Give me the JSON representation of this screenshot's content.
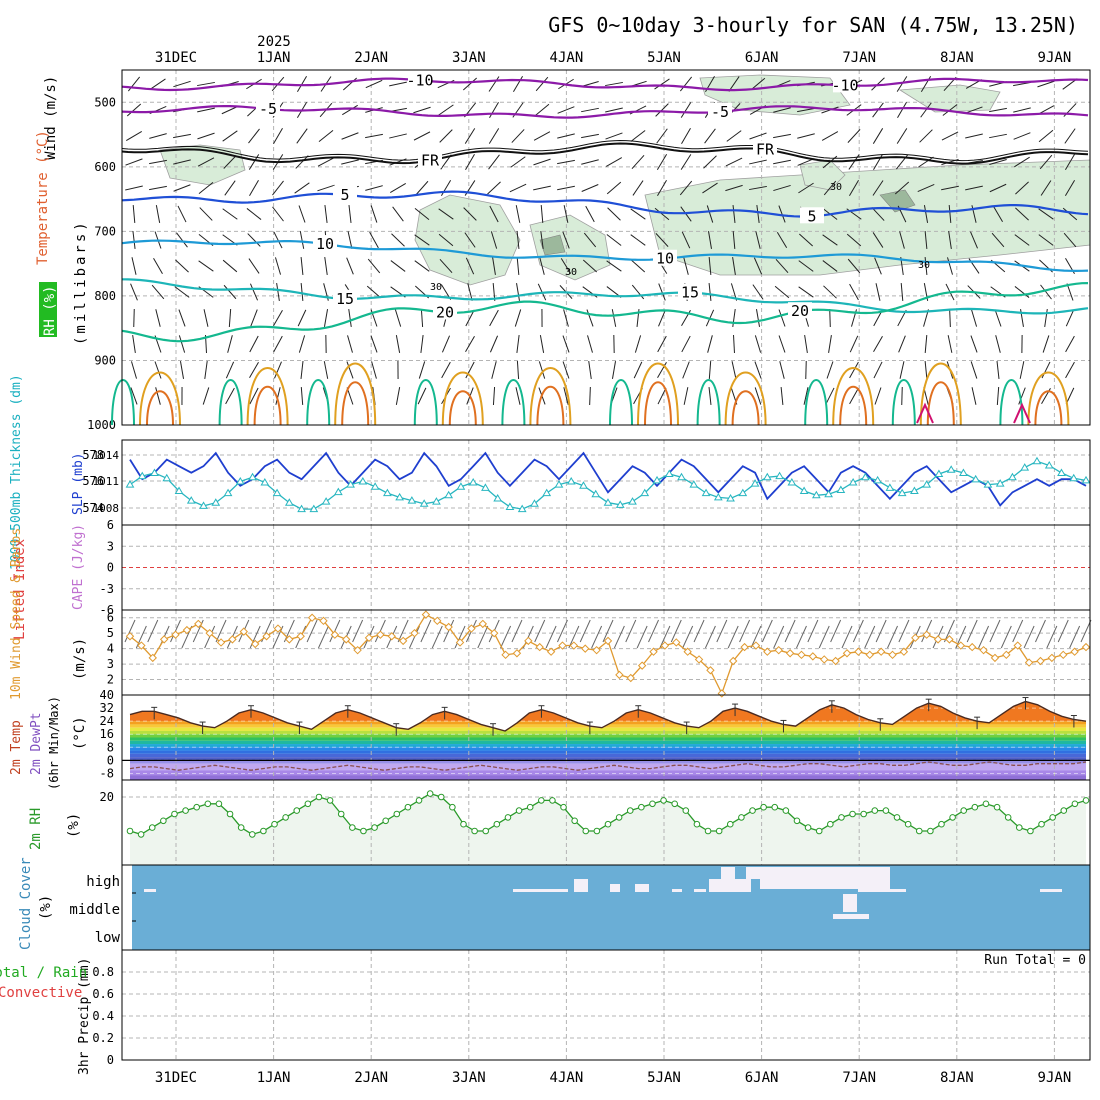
{
  "title": "GFS 0~10day 3-hourly for SAN (4.75W, 13.25N)",
  "year_label": "2025",
  "colors": {
    "grid": "#b4b4b4",
    "rh_shade": "#d8ecd8",
    "rh_shade_dark": "#9cb89c",
    "temp_minus10": "#8c1aa8",
    "temp_freeze": "#111111",
    "temp_5": "#1f4fd6",
    "temp_10": "#1e9ad6",
    "temp_15": "#1db5b8",
    "temp_20": "#14b88f",
    "temp_25": "#e0a020",
    "temp_30": "#e07020",
    "temp_35": "#d01070",
    "slp": "#1f3fcf",
    "thickness": "#28b6c0",
    "lifted_zero": "#e04040",
    "wind10": "#e09a30",
    "temp_fill_low": "#e06018",
    "dewpoint_fill": "#b080e0",
    "rh2m": "#2a9a2a",
    "rh2m_fill": "#eef5ee",
    "cloud_bg": "#6aaed6",
    "cloud_mark": "#f4f0f8"
  },
  "chart_data": [
    {
      "id": "upper-air",
      "type": "contour",
      "ylabel_parts": [
        "Wind (m/s)",
        "Temperature (°C)",
        "RH (%)",
        "(millibars)"
      ],
      "ylim": [
        1000,
        450
      ],
      "yticks": [
        "500",
        "600",
        "700",
        "800",
        "900",
        "1000"
      ],
      "ytick_values": [
        500,
        600,
        700,
        800,
        900,
        1000
      ],
      "contours": [
        {
          "label": "-10",
          "pressure": 472
        },
        {
          "label": "-5",
          "pressure": 515
        },
        {
          "label": "FR",
          "pressure": 580
        },
        {
          "label": "5",
          "pressure": 640
        },
        {
          "label": "10",
          "pressure": 718
        },
        {
          "label": "15",
          "pressure": 785
        },
        {
          "label": "20",
          "pressure": 850
        }
      ],
      "rh_label": "30"
    },
    {
      "id": "slp-thickness",
      "type": "line",
      "ylabel_left": "1000-500mb Thickness (dm)",
      "ylabel_right": "SLP (mb)",
      "left_ticks": [
        "578",
        "576",
        "574"
      ],
      "right_ticks": [
        "1014",
        "1011",
        "1008"
      ],
      "series": [
        {
          "name": "SLP (mb)",
          "ylim": [
            1004,
            1017
          ],
          "values": [
            1014,
            1011,
            1012,
            1014,
            1013,
            1012,
            1013,
            1015,
            1012,
            1010,
            1011,
            1013,
            1014,
            1012,
            1011,
            1013,
            1015,
            1012,
            1010,
            1012,
            1014,
            1013,
            1011,
            1012,
            1015,
            1013,
            1010,
            1011,
            1013,
            1015,
            1012,
            1010,
            1012,
            1014,
            1013,
            1011,
            1013,
            1015,
            1012,
            1009,
            1011,
            1013,
            1012,
            1010,
            1012,
            1014,
            1013,
            1011,
            1009,
            1011,
            1013,
            1012,
            1008,
            1010,
            1012,
            1013,
            1011,
            1009,
            1012,
            1013,
            1012,
            1010,
            1008,
            1010,
            1012,
            1013,
            1011,
            1009,
            1010,
            1011,
            1010,
            1007,
            1009,
            1010,
            1011,
            1010,
            1011,
            1011,
            1010
          ]
        },
        {
          "name": "1000-500mb Thickness (dm)",
          "ylim": [
            572,
            580
          ],
          "values": [
            575.8,
            576.6,
            576.9,
            576.4,
            575.2,
            574.3,
            573.8,
            574.1,
            575.0,
            576.1,
            576.5,
            576.0,
            575.0,
            574.1,
            573.5,
            573.5,
            574.2,
            575.1,
            575.8,
            576.1,
            575.6,
            575.0,
            574.6,
            574.3,
            574.0,
            574.2,
            574.8,
            575.6,
            576.0,
            575.5,
            574.5,
            573.7,
            573.5,
            574.0,
            575.0,
            575.8,
            576.1,
            575.7,
            574.9,
            574.1,
            573.9,
            574.2,
            575.0,
            576.2,
            576.8,
            576.5,
            575.8,
            575.0,
            574.6,
            574.5,
            575.0,
            575.9,
            576.5,
            576.6,
            576.0,
            575.2,
            574.8,
            574.9,
            575.3,
            576.0,
            576.5,
            576.2,
            575.5,
            575.0,
            575.2,
            575.8,
            576.8,
            577.2,
            576.9,
            576.3,
            575.8,
            575.9,
            576.5,
            577.4,
            578.0,
            577.6,
            576.9,
            576.4,
            576.2
          ]
        }
      ]
    },
    {
      "id": "lifted-cape",
      "type": "line",
      "ylabel": "Lifted Index",
      "ylabel2": "CAPE (J/kg)",
      "ylim": [
        -6,
        6
      ],
      "yticks": [
        "6",
        "3",
        "0",
        "-3",
        "-6"
      ],
      "ytick_values": [
        6,
        3,
        0,
        -3,
        -6
      ],
      "values": []
    },
    {
      "id": "wind-10m",
      "type": "line",
      "ylabel": "10m Wind Speed & Barbs",
      "unit": "(m/s)",
      "ylim": [
        1,
        6.5
      ],
      "yticks": [
        "6",
        "5",
        "4",
        "3",
        "2"
      ],
      "ytick_values": [
        6,
        5,
        4,
        3,
        2
      ],
      "values": [
        4.8,
        4.2,
        3.4,
        4.6,
        4.9,
        5.2,
        5.6,
        5.0,
        4.4,
        4.6,
        5.1,
        4.3,
        4.8,
        5.3,
        4.6,
        4.8,
        6.0,
        5.8,
        4.9,
        4.6,
        3.9,
        4.7,
        4.9,
        4.8,
        4.5,
        5.0,
        6.2,
        5.8,
        5.4,
        4.4,
        5.3,
        5.6,
        5.0,
        3.6,
        3.7,
        4.5,
        4.1,
        3.8,
        4.2,
        4.2,
        4.0,
        3.9,
        4.5,
        2.3,
        2.1,
        2.9,
        3.8,
        4.2,
        4.4,
        3.8,
        3.3,
        2.6,
        1.1,
        3.2,
        4.1,
        4.2,
        3.8,
        3.9,
        3.7,
        3.6,
        3.5,
        3.3,
        3.2,
        3.7,
        3.8,
        3.6,
        3.8,
        3.6,
        3.8,
        4.7,
        4.9,
        4.6,
        4.6,
        4.2,
        4.1,
        3.9,
        3.4,
        3.6,
        4.2,
        3.1,
        3.2,
        3.4,
        3.6,
        3.8,
        4.1
      ]
    },
    {
      "id": "temp-dewpt",
      "type": "area",
      "ylabel_parts": [
        "2m Temp",
        "2m DewPt",
        "(6hr Min/Max)"
      ],
      "unit": "(°C)",
      "ylim": [
        -12,
        40
      ],
      "yticks": [
        "40",
        "32",
        "24",
        "16",
        "8",
        "0",
        "-8"
      ],
      "ytick_values": [
        40,
        32,
        24,
        16,
        8,
        0,
        -8
      ],
      "temperature": [
        28,
        30,
        30,
        28,
        26,
        23,
        21,
        20,
        24,
        29,
        31,
        29,
        26,
        23,
        21,
        19,
        24,
        29,
        31,
        29,
        26,
        23,
        20,
        19,
        23,
        28,
        30,
        28,
        25,
        22,
        20,
        18,
        23,
        29,
        31,
        29,
        26,
        23,
        21,
        20,
        24,
        29,
        31,
        29,
        26,
        23,
        21,
        20,
        24,
        30,
        32,
        30,
        27,
        24,
        22,
        21,
        26,
        31,
        34,
        32,
        28,
        25,
        23,
        22,
        27,
        32,
        35,
        33,
        29,
        26,
        24,
        23,
        28,
        33,
        36,
        34,
        30,
        27,
        25,
        24
      ],
      "dewpoint": [
        -5,
        -4,
        -4,
        -5,
        -6,
        -5,
        -4,
        -3,
        -4,
        -5,
        -6,
        -5,
        -4,
        -4,
        -5,
        -6,
        -5,
        -4,
        -3,
        -4,
        -5,
        -6,
        -5,
        -4,
        -4,
        -5,
        -6,
        -5,
        -4,
        -3,
        -4,
        -5,
        -6,
        -5,
        -4,
        -4,
        -5,
        -6,
        -5,
        -4,
        -3,
        -4,
        -5,
        -5,
        -4,
        -3,
        -3,
        -4,
        -5,
        -4,
        -3,
        -2,
        -3,
        -4,
        -4,
        -3,
        -2,
        -2,
        -3,
        -4,
        -3,
        -2,
        -2,
        -3,
        -3,
        -2,
        -1,
        -2,
        -3,
        -3,
        -2,
        -1,
        -2,
        -3,
        -3,
        -2,
        -2,
        -2,
        -2,
        -1
      ]
    },
    {
      "id": "rh-2m",
      "type": "line",
      "ylabel": "2m RH",
      "unit": "(%)",
      "ylim": [
        0,
        25
      ],
      "yticks": [
        "20"
      ],
      "ytick_values": [
        20
      ],
      "values": [
        10,
        9,
        11,
        13,
        15,
        16,
        17,
        18,
        18,
        15,
        11,
        9,
        10,
        12,
        14,
        16,
        18,
        20,
        19,
        15,
        11,
        10,
        11,
        13,
        15,
        17,
        19,
        21,
        20,
        17,
        12,
        10,
        10,
        12,
        14,
        16,
        17,
        19,
        19,
        17,
        13,
        10,
        10,
        12,
        14,
        16,
        17,
        18,
        19,
        18,
        16,
        12,
        10,
        10,
        12,
        14,
        16,
        17,
        17,
        16,
        13,
        11,
        10,
        12,
        14,
        15,
        15,
        16,
        16,
        14,
        12,
        10,
        10,
        12,
        14,
        16,
        17,
        18,
        17,
        14,
        11,
        10,
        12,
        14,
        16,
        18,
        19
      ]
    },
    {
      "id": "cloud-cover",
      "type": "heatmap",
      "ylabel": "Cloud Cover",
      "unit": "(%)",
      "yticks": [
        "high",
        "middle",
        "low"
      ]
    },
    {
      "id": "precip",
      "type": "bar",
      "ylabel_parts": [
        "3hr Precip (mm)",
        "Total / Rain",
        "Convective"
      ],
      "ylim": [
        0,
        1
      ],
      "yticks": [
        "0.8",
        "0.6",
        "0.4",
        "0.2",
        "0"
      ],
      "ytick_values": [
        0.8,
        0.6,
        0.4,
        0.2,
        0
      ],
      "run_total": "Run Total = 0",
      "values": []
    }
  ],
  "time_axis": {
    "top_labels": [
      "31DEC",
      "1JAN",
      "2JAN",
      "3JAN",
      "4JAN",
      "5JAN",
      "6JAN",
      "7JAN",
      "8JAN",
      "9JAN"
    ],
    "bottom_labels": [
      "31DEC",
      "1JAN",
      "2JAN",
      "3JAN",
      "4JAN",
      "5JAN",
      "6JAN",
      "7JAN",
      "8JAN",
      "9JAN"
    ]
  }
}
